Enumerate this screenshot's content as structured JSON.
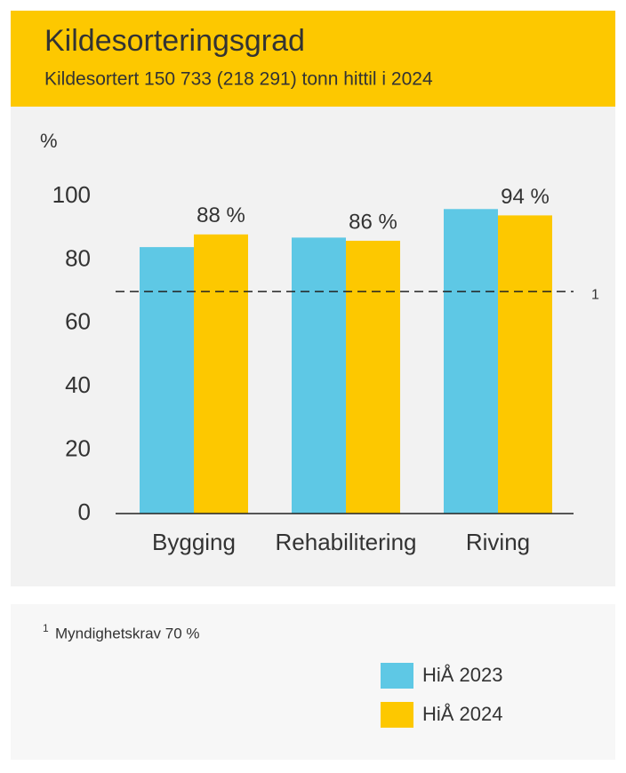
{
  "chart_data": {
    "type": "bar",
    "title": "Kildesorteringsgrad",
    "subtitle": "Kildesortert 150 733 (218 291) tonn hittil i 2024",
    "y_label": "%",
    "categories": [
      "Bygging",
      "Rehabilitering",
      "Riving"
    ],
    "series": [
      {
        "name": "HiÅ 2023",
        "color": "#5ec8e5",
        "values": [
          84,
          87,
          96
        ]
      },
      {
        "name": "HiÅ 2024",
        "color": "#fdc800",
        "values": [
          88,
          86,
          94
        ],
        "value_labels": [
          "88 %",
          "86 %",
          "94 %"
        ]
      }
    ],
    "ylim": [
      0,
      100
    ],
    "yticks": [
      0,
      20,
      40,
      60,
      80,
      100
    ],
    "grid": false,
    "reference_line": {
      "value": 70,
      "label": "1"
    },
    "footnote": "Myndighetskrav 70 %"
  }
}
